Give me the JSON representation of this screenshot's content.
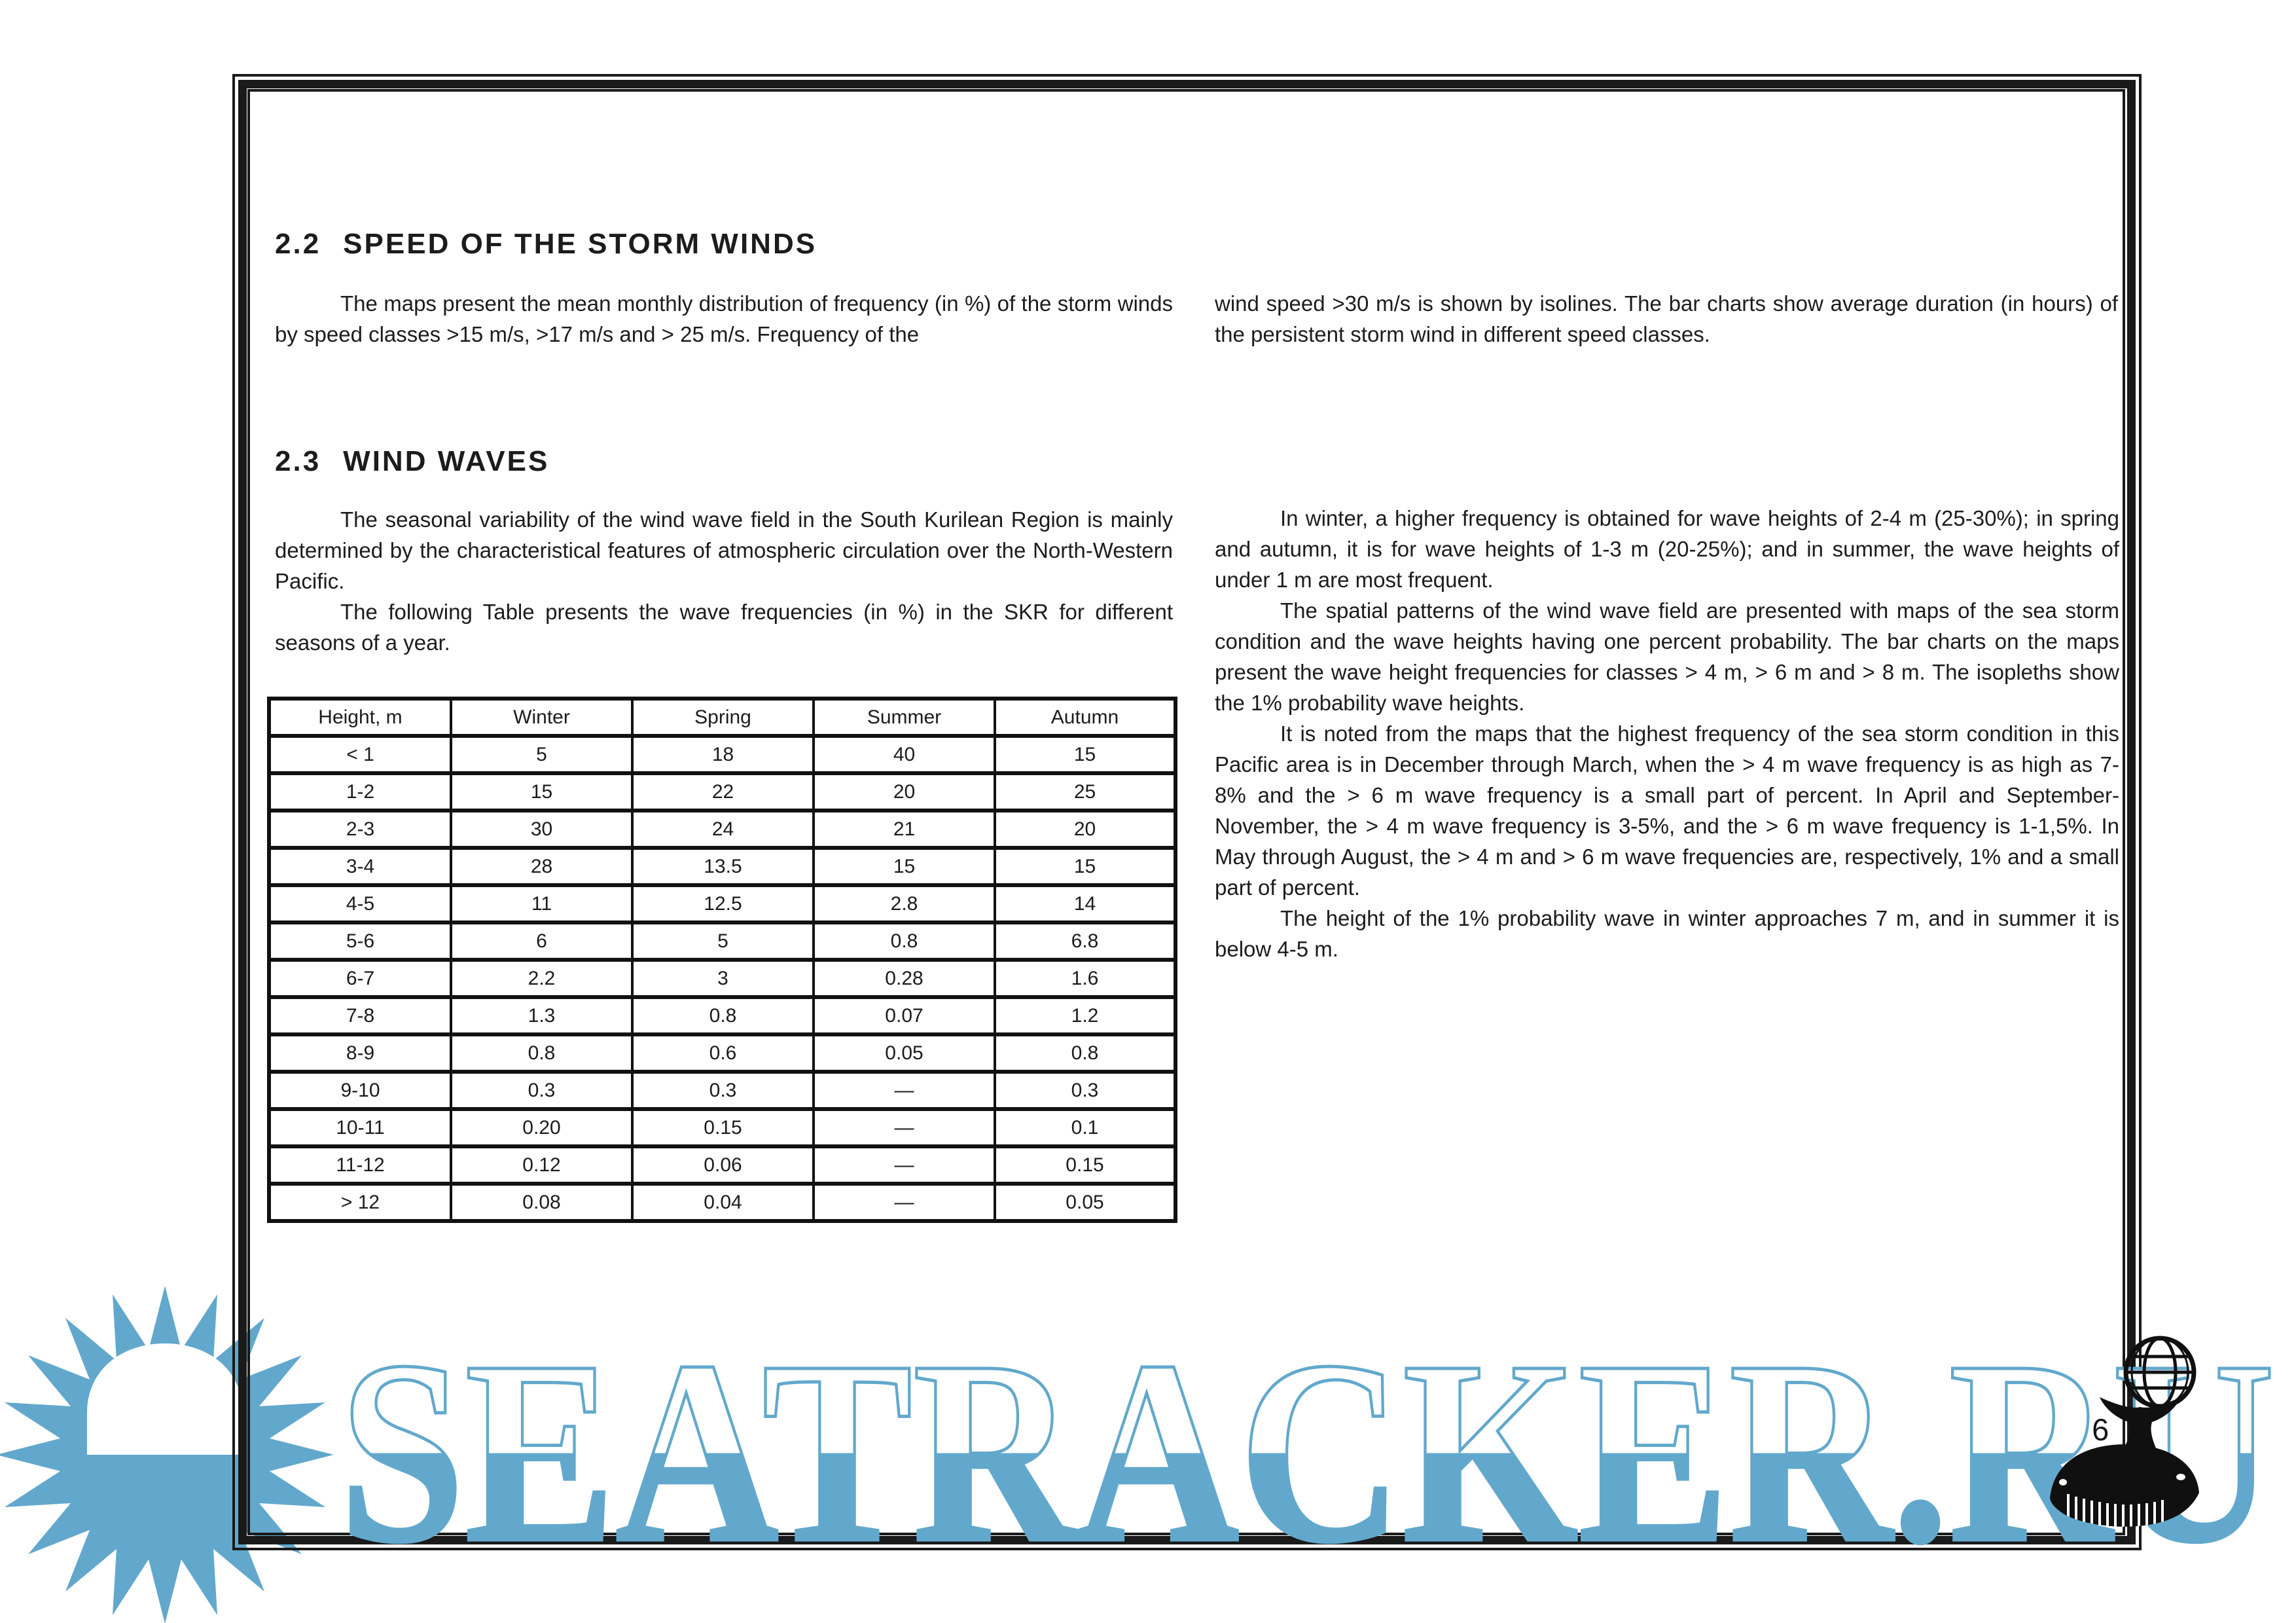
{
  "page_number": "16",
  "watermark": {
    "text": "SEATRACKER.RU",
    "color": "#62a8cc"
  },
  "logo_colors": {
    "sun": "#62a8cc",
    "whale": "#101010"
  },
  "section_2_2": {
    "number": "2.2",
    "title": "SPEED OF THE STORM WINDS",
    "left_paragraph": "The maps present the mean monthly distribution of frequency (in %) of the storm winds by speed classes >15 m/s, >17 m/s and > 25 m/s. Frequency of the",
    "right_paragraph": "wind speed >30 m/s is shown by isolines. The bar charts show average duration (in hours) of the persistent storm wind in different speed classes."
  },
  "section_2_3": {
    "number": "2.3",
    "title": "WIND WAVES",
    "left_paragraphs": [
      "The seasonal variability of the wind wave field in the South Kurilean Region is mainly determined by the characteristical features of atmospheric circulation over the North-Western Pacific.",
      "The following Table presents the wave frequencies (in %) in the SKR for different seasons of a year."
    ],
    "right_paragraphs": [
      "In winter, a higher frequency is obtained for wave heights of 2-4 m (25-30%); in spring and autumn, it is for wave heights of 1-3 m (20-25%); and in summer, the wave heights of under 1 m are most frequent.",
      "The spatial patterns of the wind wave field are presented with maps of the sea storm condition and the wave heights having one percent probability. The bar charts on the maps present the wave height frequencies for classes > 4 m, > 6 m and > 8 m. The isopleths show the 1% probability wave heights.",
      "It is noted from the maps that the highest frequency of the sea storm condition in this Pacific area is in December through March, when the > 4 m wave frequency is as high as 7-8% and the > 6 m wave frequency is a small part of percent. In April and September-November, the > 4 m wave frequency is 3-5%, and the > 6 m wave frequency is 1-1,5%. In May through August, the > 4 m and > 6 m wave frequencies are, respectively, 1% and a small part of percent.",
      "The height of the 1% probability wave in winter approaches 7 m, and in summer it is below 4-5 m."
    ]
  },
  "wave_table": {
    "headers": [
      "Height, m",
      "Winter",
      "Spring",
      "Summer",
      "Autumn"
    ],
    "rows": [
      [
        "< 1",
        "5",
        "18",
        "40",
        "15"
      ],
      [
        "1-2",
        "15",
        "22",
        "20",
        "25"
      ],
      [
        "2-3",
        "30",
        "24",
        "21",
        "20"
      ],
      [
        "3-4",
        "28",
        "13.5",
        "15",
        "15"
      ],
      [
        "4-5",
        "11",
        "12.5",
        "2.8",
        "14"
      ],
      [
        "5-6",
        "6",
        "5",
        "0.8",
        "6.8"
      ],
      [
        "6-7",
        "2.2",
        "3",
        "0.28",
        "1.6"
      ],
      [
        "7-8",
        "1.3",
        "0.8",
        "0.07",
        "1.2"
      ],
      [
        "8-9",
        "0.8",
        "0.6",
        "0.05",
        "0.8"
      ],
      [
        "9-10",
        "0.3",
        "0.3",
        "—",
        "0.3"
      ],
      [
        "10-11",
        "0.20",
        "0.15",
        "—",
        "0.1"
      ],
      [
        "11-12",
        "0.12",
        "0.06",
        "—",
        "0.15"
      ],
      [
        "> 12",
        "0.08",
        "0.04",
        "—",
        "0.05"
      ]
    ]
  }
}
